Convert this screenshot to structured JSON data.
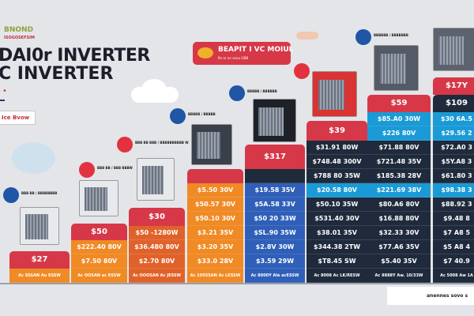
{
  "header": {
    "brand": "BNOND",
    "brand_sub": "ISOGOSEFSIM",
    "title_line1": "DAI0r INVERTER",
    "title_line2": "C INVERTER",
    "marker": "•",
    "show_button": "Ice Bvow"
  },
  "badge": {
    "title": "BEAPIT I VC MOIUL",
    "subtitle": "Bn or on anou   GNB"
  },
  "colors": {
    "red": "#d63848",
    "orange": "#f08a24",
    "orange_dark": "#e0622a",
    "blue": "#2f5fb8",
    "navy": "#1f2a3c",
    "cyan": "#1a9ad6",
    "background": "#e4e5e9"
  },
  "products": [
    {
      "logo_color": "blue",
      "label": "BBB BB / BBBBBBBB"
    },
    {
      "logo_color": "red",
      "label": "BBB BB / BBB BBBW"
    },
    {
      "logo_color": "red",
      "label": "BBB BB BBB / BBBBBBBBBB W"
    },
    {
      "logo_color": "blue",
      "label": "BBBBB / BBBBB"
    },
    {
      "logo_color": "blue",
      "label": "BBBBB / BBBBBB"
    },
    {
      "logo_color": "red",
      "label": ""
    },
    {
      "logo_color": "blue",
      "label": "BBBBBB / BBBBBBB"
    }
  ],
  "columns": [
    {
      "header": "$27",
      "header_color": "red",
      "cells": [
        {
          "text": "Ac SSSAN Au ESSW",
          "color": "orange",
          "foot": true
        }
      ]
    },
    {
      "header": "$50",
      "header_color": "red",
      "cells": [
        {
          "text": "$222.40 80V",
          "color": "orange"
        },
        {
          "text": "$7.50 80V",
          "color": "orange"
        },
        {
          "text": "Ac OOSAN ac ESSW",
          "color": "orange",
          "foot": true
        }
      ]
    },
    {
      "header": "$30",
      "header_color": "red",
      "cells": [
        {
          "text": "$50 -1280W",
          "color": "orange_dark"
        },
        {
          "text": "$36.480 80V",
          "color": "orange_dark"
        },
        {
          "text": "$2.70 80V",
          "color": "orange_dark"
        },
        {
          "text": "Ac OOOSAN Ac JESSW",
          "color": "orange_dark",
          "foot": true
        }
      ]
    },
    {
      "header": "",
      "header_color": "red",
      "cells": [
        {
          "text": "$5.50 30V",
          "color": "orange"
        },
        {
          "text": "$50.57 30V",
          "color": "orange"
        },
        {
          "text": "$50.10 30V",
          "color": "orange"
        },
        {
          "text": "$3.21 35V",
          "color": "orange"
        },
        {
          "text": "$3.20 35V",
          "color": "orange"
        },
        {
          "text": "$33.0 28V",
          "color": "orange"
        },
        {
          "text": "Ac 1055SAN Ac LESSW",
          "color": "orange",
          "foot": true
        }
      ]
    },
    {
      "header": "$317",
      "header_color": "red",
      "cells": [
        {
          "text": "",
          "color": "navy"
        },
        {
          "text": "$19.58 35V",
          "color": "blue"
        },
        {
          "text": "$5A.58 33V",
          "color": "blue"
        },
        {
          "text": "$50 20 33W",
          "color": "blue"
        },
        {
          "text": "$SL.90 35W",
          "color": "blue"
        },
        {
          "text": "$2.8V 30W",
          "color": "blue"
        },
        {
          "text": "$3.59 29W",
          "color": "blue"
        },
        {
          "text": "Ac 8000Y Ale acESSW",
          "color": "blue",
          "foot": true
        }
      ]
    },
    {
      "header": "$39",
      "header_color": "red",
      "cells": [
        {
          "text": "$31.91 80W",
          "color": "navy"
        },
        {
          "text": "$748.48 300V",
          "color": "navy"
        },
        {
          "text": "$788 80 35W",
          "color": "navy"
        },
        {
          "text": "$20.58 80V",
          "color": "cyan"
        },
        {
          "text": "$50.10 35W",
          "color": "navy"
        },
        {
          "text": "$531.40 30V",
          "color": "navy"
        },
        {
          "text": "$38.01 35V",
          "color": "navy"
        },
        {
          "text": "$344.38 2TW",
          "color": "navy"
        },
        {
          "text": "$T8.45 SW",
          "color": "navy"
        },
        {
          "text": "Ac 8008 Ac LK/RESW",
          "color": "navy",
          "foot": true
        }
      ]
    },
    {
      "header": "$59",
      "header_color": "red",
      "cells": [
        {
          "text": "$85.A0 30W",
          "color": "cyan"
        },
        {
          "text": "$226 80V",
          "color": "cyan"
        },
        {
          "text": "$71.88 80V",
          "color": "navy"
        },
        {
          "text": "$721.48 35V",
          "color": "navy"
        },
        {
          "text": "$185.38 28V",
          "color": "navy"
        },
        {
          "text": "$221.69 38V",
          "color": "cyan"
        },
        {
          "text": "$80.A6 80V",
          "color": "navy"
        },
        {
          "text": "$16.88 80V",
          "color": "navy"
        },
        {
          "text": "$32.33 30V",
          "color": "navy"
        },
        {
          "text": "$77.A6 35V",
          "color": "navy"
        },
        {
          "text": "$5.40 35V",
          "color": "navy"
        },
        {
          "text": "Ac 8888Y Aw. 10/33W",
          "color": "navy",
          "foot": true
        }
      ]
    },
    {
      "header": "$109",
      "header_color": "navy",
      "top_label": "$17Y",
      "cells": [
        {
          "text": "$30 6A.5",
          "color": "cyan"
        },
        {
          "text": "$29.56 2",
          "color": "cyan"
        },
        {
          "text": "$72.A0 3",
          "color": "navy"
        },
        {
          "text": "$5Y.A8 3",
          "color": "navy"
        },
        {
          "text": "$61.80 3",
          "color": "navy"
        },
        {
          "text": "$98.38 3",
          "color": "cyan"
        },
        {
          "text": "$88.92 3",
          "color": "navy"
        },
        {
          "text": "$9.48 8",
          "color": "navy"
        },
        {
          "text": "$7 A8 5",
          "color": "navy"
        },
        {
          "text": "$5 A8 4",
          "color": "navy"
        },
        {
          "text": "$7 40.9",
          "color": "navy"
        },
        {
          "text": "Ac 5008 Aw 1A",
          "color": "navy",
          "foot": true
        }
      ]
    }
  ],
  "footer_box": "anennes sovo s"
}
